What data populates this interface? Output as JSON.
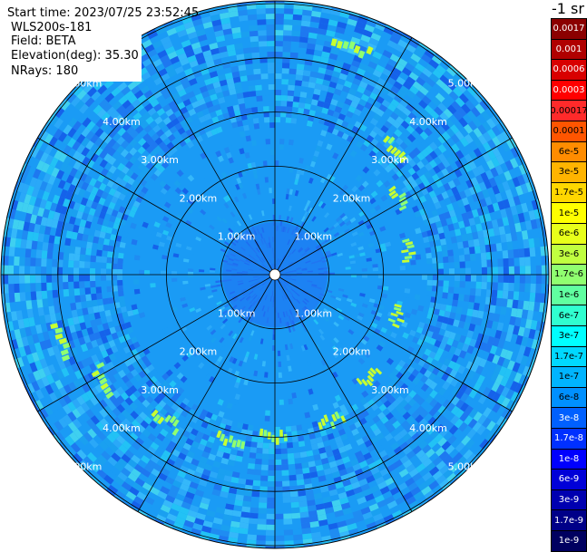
{
  "header": {
    "start_time": "Start time: 2023/07/25 23:52:45",
    "instrument": "WLS200s-181",
    "field": "Field: BETA",
    "elevation": "Elevation(deg): 35.30",
    "nrays": "NRays: 180"
  },
  "colorbar": {
    "unit": "-1 sr",
    "entries": [
      {
        "label": "0.0017",
        "color": "#8b0000"
      },
      {
        "label": "0.001",
        "color": "#b00000"
      },
      {
        "label": "0.0006",
        "color": "#d80000"
      },
      {
        "label": "0.0003",
        "color": "#ff0000"
      },
      {
        "label": "0.00017",
        "color": "#ff2a2a"
      },
      {
        "label": "0.0001",
        "color": "#ff5500"
      },
      {
        "label": "6e-5",
        "color": "#ff8c00"
      },
      {
        "label": "3e-5",
        "color": "#ffb400"
      },
      {
        "label": "1.7e-5",
        "color": "#ffd700"
      },
      {
        "label": "1e-5",
        "color": "#ffff00"
      },
      {
        "label": "6e-6",
        "color": "#e8ff1a"
      },
      {
        "label": "3e-6",
        "color": "#c0ff40"
      },
      {
        "label": "1.7e-6",
        "color": "#90ff70"
      },
      {
        "label": "1e-6",
        "color": "#60ffa0"
      },
      {
        "label": "6e-7",
        "color": "#30ffd0"
      },
      {
        "label": "3e-7",
        "color": "#00ffff"
      },
      {
        "label": "1.7e-7",
        "color": "#00d8ff"
      },
      {
        "label": "1e-7",
        "color": "#00b4ff"
      },
      {
        "label": "6e-8",
        "color": "#0090ff"
      },
      {
        "label": "3e-8",
        "color": "#0060ff"
      },
      {
        "label": "1.7e-8",
        "color": "#0030ff"
      },
      {
        "label": "1e-8",
        "color": "#0000ff"
      },
      {
        "label": "6e-9",
        "color": "#0000d8"
      },
      {
        "label": "3e-9",
        "color": "#0000b0"
      },
      {
        "label": "1.7e-9",
        "color": "#000088"
      },
      {
        "label": "1e-9",
        "color": "#000060"
      }
    ]
  },
  "ppi": {
    "range_rings": [
      {
        "label": "1.00km",
        "km": 1
      },
      {
        "label": "2.00km",
        "km": 2
      },
      {
        "label": "3.00km",
        "km": 3
      },
      {
        "label": "4.00km",
        "km": 4
      },
      {
        "label": "5.00km",
        "km": 5
      }
    ],
    "max_range_km": 5.05,
    "spoke_step_deg": 30,
    "background_color": "#1a9bf5",
    "inner_color": "#1f6ef0",
    "aerosol_layer_color": "#c8ff30"
  }
}
